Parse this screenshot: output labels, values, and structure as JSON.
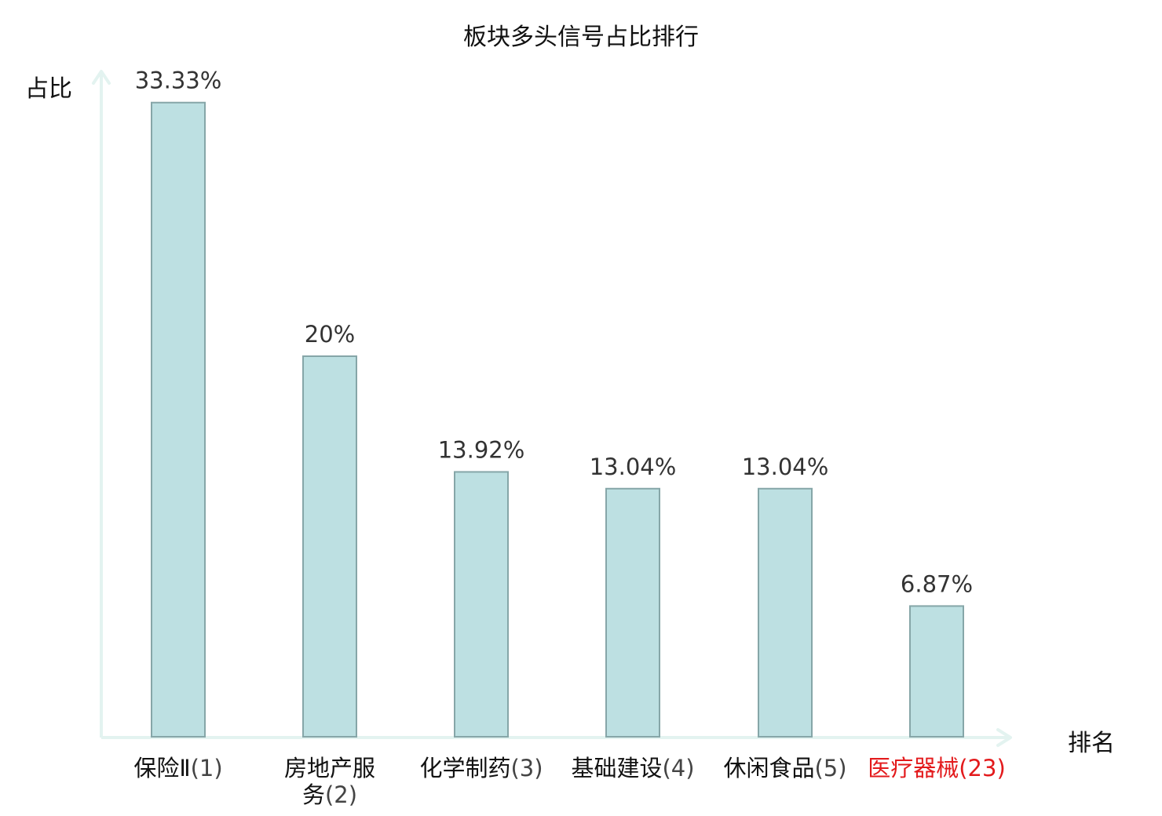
{
  "chart_data": {
    "type": "bar",
    "title": "板块多头信号占比排行",
    "xlabel": "排名",
    "ylabel": "占比",
    "ylim": [
      0,
      35
    ],
    "categories": [
      {
        "name": "保险Ⅱ",
        "rank": "(1)",
        "highlight": false
      },
      {
        "name": "房地产服务",
        "rank": "(2)",
        "highlight": false
      },
      {
        "name": "化学制药",
        "rank": "(3)",
        "highlight": false
      },
      {
        "name": "基础建设",
        "rank": "(4)",
        "highlight": false
      },
      {
        "name": "休闲食品",
        "rank": "(5)",
        "highlight": false
      },
      {
        "name": "医疗器械",
        "rank": "(23)",
        "highlight": true
      }
    ],
    "values": [
      33.33,
      20,
      13.92,
      13.04,
      13.04,
      6.87
    ],
    "value_labels": [
      "33.33%",
      "20%",
      "13.92%",
      "13.04%",
      "13.04%",
      "6.87%"
    ],
    "grid": false,
    "colors": {
      "bar_fill": "#bde0e2",
      "bar_stroke": "#86a6a8",
      "axis": "#e3f3f0",
      "highlight": "#e31a1c"
    }
  }
}
